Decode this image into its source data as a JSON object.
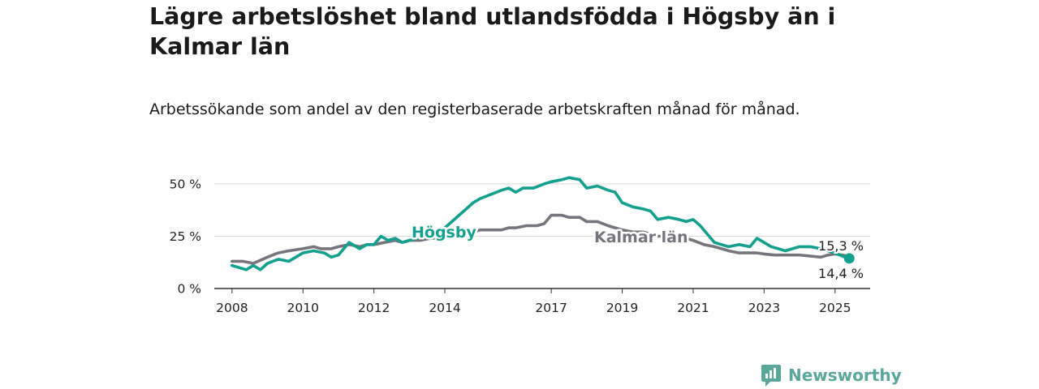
{
  "title": "Lägre arbetslöshet bland utlandsfödda i Högsby än i Kalmar län",
  "subtitle": "Arbetssökande som andel av den registerbaserade arbetskraften månad för månad.",
  "brand": "Newsworthy",
  "colors": {
    "hogsby": "#14a08f",
    "kalmar": "#77757b",
    "grid": "#d9d9d9",
    "axis": "#333333",
    "brand": "#5ba79b"
  },
  "chart_data": {
    "type": "line",
    "xlim": [
      2007.5,
      2025.99
    ],
    "ylim": [
      0,
      55
    ],
    "y_ticks": [
      {
        "value": 0,
        "label": "0 %"
      },
      {
        "value": 25,
        "label": "25 %"
      },
      {
        "value": 50,
        "label": "50 %"
      }
    ],
    "x_ticks": [
      {
        "value": 2008,
        "label": "2008"
      },
      {
        "value": 2010,
        "label": "2010"
      },
      {
        "value": 2012,
        "label": "2012"
      },
      {
        "value": 2014,
        "label": "2014"
      },
      {
        "value": 2017,
        "label": "2017"
      },
      {
        "value": 2019,
        "label": "2019"
      },
      {
        "value": 2021,
        "label": "2021"
      },
      {
        "value": 2023,
        "label": "2023"
      },
      {
        "value": 2025,
        "label": "2025"
      }
    ],
    "grid": true,
    "series": [
      {
        "name": "Högsby",
        "key": "hogsby",
        "end_label": "14,4 %",
        "points": [
          [
            2008.0,
            11
          ],
          [
            2008.2,
            10
          ],
          [
            2008.4,
            9
          ],
          [
            2008.6,
            11
          ],
          [
            2008.8,
            9
          ],
          [
            2009.0,
            12
          ],
          [
            2009.3,
            14
          ],
          [
            2009.6,
            13
          ],
          [
            2009.8,
            15
          ],
          [
            2010.0,
            17
          ],
          [
            2010.3,
            18
          ],
          [
            2010.6,
            17
          ],
          [
            2010.8,
            15
          ],
          [
            2011.0,
            16
          ],
          [
            2011.3,
            22
          ],
          [
            2011.6,
            19
          ],
          [
            2011.8,
            21
          ],
          [
            2012.0,
            21
          ],
          [
            2012.2,
            25
          ],
          [
            2012.4,
            23
          ],
          [
            2012.6,
            24
          ],
          [
            2012.8,
            22
          ],
          [
            2013.0,
            23
          ],
          [
            2013.2,
            24
          ],
          [
            2013.4,
            25
          ],
          [
            2013.6,
            24
          ],
          [
            2013.8,
            26
          ],
          [
            2014.0,
            29
          ],
          [
            2014.2,
            32
          ],
          [
            2014.4,
            35
          ],
          [
            2014.6,
            38
          ],
          [
            2014.8,
            41
          ],
          [
            2015.0,
            43
          ],
          [
            2015.3,
            45
          ],
          [
            2015.6,
            47
          ],
          [
            2015.8,
            48
          ],
          [
            2016.0,
            46
          ],
          [
            2016.2,
            48
          ],
          [
            2016.5,
            48
          ],
          [
            2016.8,
            50
          ],
          [
            2017.0,
            51
          ],
          [
            2017.3,
            52
          ],
          [
            2017.5,
            53
          ],
          [
            2017.8,
            52
          ],
          [
            2018.0,
            48
          ],
          [
            2018.3,
            49
          ],
          [
            2018.6,
            47
          ],
          [
            2018.8,
            46
          ],
          [
            2019.0,
            41
          ],
          [
            2019.3,
            39
          ],
          [
            2019.6,
            38
          ],
          [
            2019.8,
            37
          ],
          [
            2020.0,
            33
          ],
          [
            2020.3,
            34
          ],
          [
            2020.6,
            33
          ],
          [
            2020.8,
            32
          ],
          [
            2021.0,
            33
          ],
          [
            2021.2,
            30
          ],
          [
            2021.4,
            26
          ],
          [
            2021.6,
            22
          ],
          [
            2021.8,
            21
          ],
          [
            2022.0,
            20
          ],
          [
            2022.3,
            21
          ],
          [
            2022.6,
            20
          ],
          [
            2022.8,
            24
          ],
          [
            2023.0,
            22
          ],
          [
            2023.2,
            20
          ],
          [
            2023.4,
            19
          ],
          [
            2023.6,
            18
          ],
          [
            2023.8,
            19
          ],
          [
            2024.0,
            20
          ],
          [
            2024.3,
            20
          ],
          [
            2024.6,
            19
          ],
          [
            2024.8,
            18
          ],
          [
            2025.0,
            17
          ],
          [
            2025.2,
            15.5
          ],
          [
            2025.4,
            14.4
          ]
        ]
      },
      {
        "name": "Kalmar län",
        "key": "kalmar",
        "end_label": "15,3 %",
        "points": [
          [
            2008.0,
            13
          ],
          [
            2008.3,
            13
          ],
          [
            2008.6,
            12
          ],
          [
            2009.0,
            15
          ],
          [
            2009.3,
            17
          ],
          [
            2009.6,
            18
          ],
          [
            2010.0,
            19
          ],
          [
            2010.3,
            20
          ],
          [
            2010.5,
            19
          ],
          [
            2010.8,
            19
          ],
          [
            2011.0,
            20
          ],
          [
            2011.3,
            21
          ],
          [
            2011.6,
            20
          ],
          [
            2011.8,
            21
          ],
          [
            2012.0,
            21
          ],
          [
            2012.3,
            22
          ],
          [
            2012.6,
            23
          ],
          [
            2012.8,
            22
          ],
          [
            2013.0,
            23
          ],
          [
            2013.3,
            23
          ],
          [
            2013.6,
            24
          ],
          [
            2013.8,
            24
          ],
          [
            2014.0,
            25
          ],
          [
            2014.3,
            25
          ],
          [
            2014.6,
            27
          ],
          [
            2014.8,
            27
          ],
          [
            2015.0,
            28
          ],
          [
            2015.3,
            28
          ],
          [
            2015.6,
            28
          ],
          [
            2015.8,
            29
          ],
          [
            2016.0,
            29
          ],
          [
            2016.3,
            30
          ],
          [
            2016.6,
            30
          ],
          [
            2016.8,
            31
          ],
          [
            2017.0,
            35
          ],
          [
            2017.3,
            35
          ],
          [
            2017.5,
            34
          ],
          [
            2017.8,
            34
          ],
          [
            2018.0,
            32
          ],
          [
            2018.3,
            32
          ],
          [
            2018.6,
            30
          ],
          [
            2018.8,
            29
          ],
          [
            2019.0,
            28
          ],
          [
            2019.3,
            27
          ],
          [
            2019.6,
            27
          ],
          [
            2019.8,
            26
          ],
          [
            2020.0,
            25
          ],
          [
            2020.3,
            25
          ],
          [
            2020.6,
            25
          ],
          [
            2020.8,
            24
          ],
          [
            2021.0,
            23
          ],
          [
            2021.3,
            21
          ],
          [
            2021.6,
            20
          ],
          [
            2021.8,
            19
          ],
          [
            2022.0,
            18
          ],
          [
            2022.3,
            17
          ],
          [
            2022.6,
            17
          ],
          [
            2022.8,
            17
          ],
          [
            2023.0,
            16.5
          ],
          [
            2023.3,
            16
          ],
          [
            2023.6,
            16
          ],
          [
            2023.8,
            16
          ],
          [
            2024.0,
            16
          ],
          [
            2024.3,
            15.5
          ],
          [
            2024.6,
            15
          ],
          [
            2024.8,
            16
          ],
          [
            2025.0,
            16.5
          ],
          [
            2025.2,
            16
          ],
          [
            2025.4,
            15.3
          ]
        ]
      }
    ]
  }
}
